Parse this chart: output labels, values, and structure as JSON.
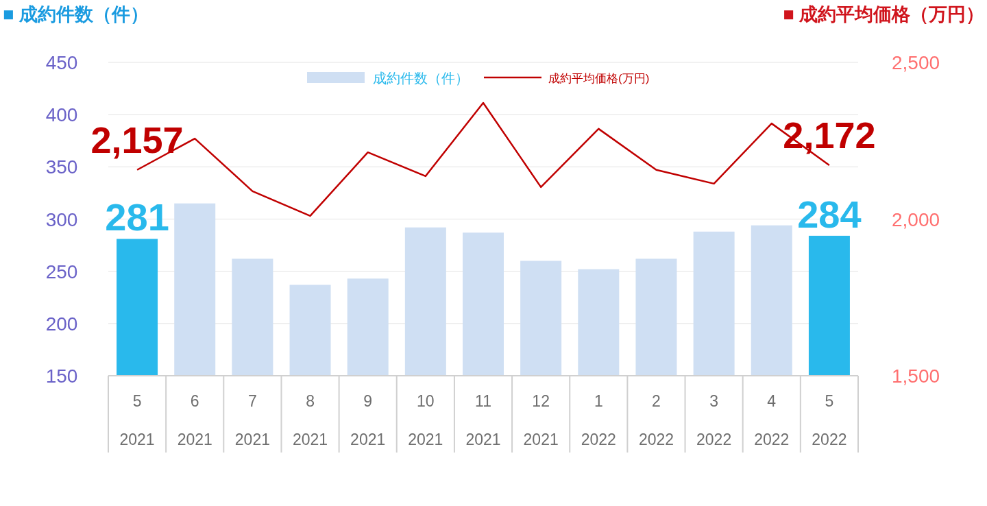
{
  "chart_data": {
    "type": "bar",
    "ylabel": "■ 成約件数（件）",
    "y2label": "■ 成約平均価格（万円）",
    "categories": [
      "5\n2021",
      "6\n2021",
      "7\n2021",
      "8\n2021",
      "9\n2021",
      "10\n2021",
      "11\n2021",
      "12\n2021",
      "1\n2022",
      "2\n2022",
      "3\n2022",
      "4\n2022",
      "5\n2022"
    ],
    "series": [
      {
        "name": "成約件数（件）",
        "color": "#cfdff3",
        "colors": [
          "#29b9ec",
          "#cfdff3",
          "#cfdff3",
          "#cfdff3",
          "#cfdff3",
          "#cfdff3",
          "#cfdff3",
          "#cfdff3",
          "#cfdff3",
          "#cfdff3",
          "#cfdff3",
          "#cfdff3",
          "#29b9ec"
        ],
        "values": [
          281,
          315,
          262,
          237,
          243,
          292,
          287,
          260,
          252,
          262,
          288,
          294,
          284
        ],
        "value_labels": [
          "281",
          null,
          null,
          null,
          null,
          null,
          null,
          null,
          null,
          null,
          null,
          null,
          "284"
        ]
      },
      {
        "name": "成約平均価格(万円)",
        "type": "line",
        "axis": "y2",
        "color": "#c00000",
        "values": [
          2157,
          2257,
          2089,
          2010,
          2213,
          2137,
          2371,
          2102,
          2288,
          2157,
          2113,
          2305,
          2172
        ],
        "value_labels": [
          "2,157",
          null,
          null,
          null,
          null,
          null,
          null,
          null,
          null,
          null,
          null,
          null,
          "2,172"
        ]
      }
    ],
    "ylim": [
      150,
      450
    ],
    "yticks": [
      150,
      200,
      250,
      300,
      350,
      400,
      450
    ],
    "y2lim": [
      1500,
      2500
    ],
    "y2ticks": [
      {
        "value": 1500,
        "label": "1,500"
      },
      {
        "value": 2000,
        "label": "2,000"
      },
      {
        "value": 2500,
        "label": "2,500"
      }
    ],
    "grid": "y",
    "legend": "top"
  }
}
